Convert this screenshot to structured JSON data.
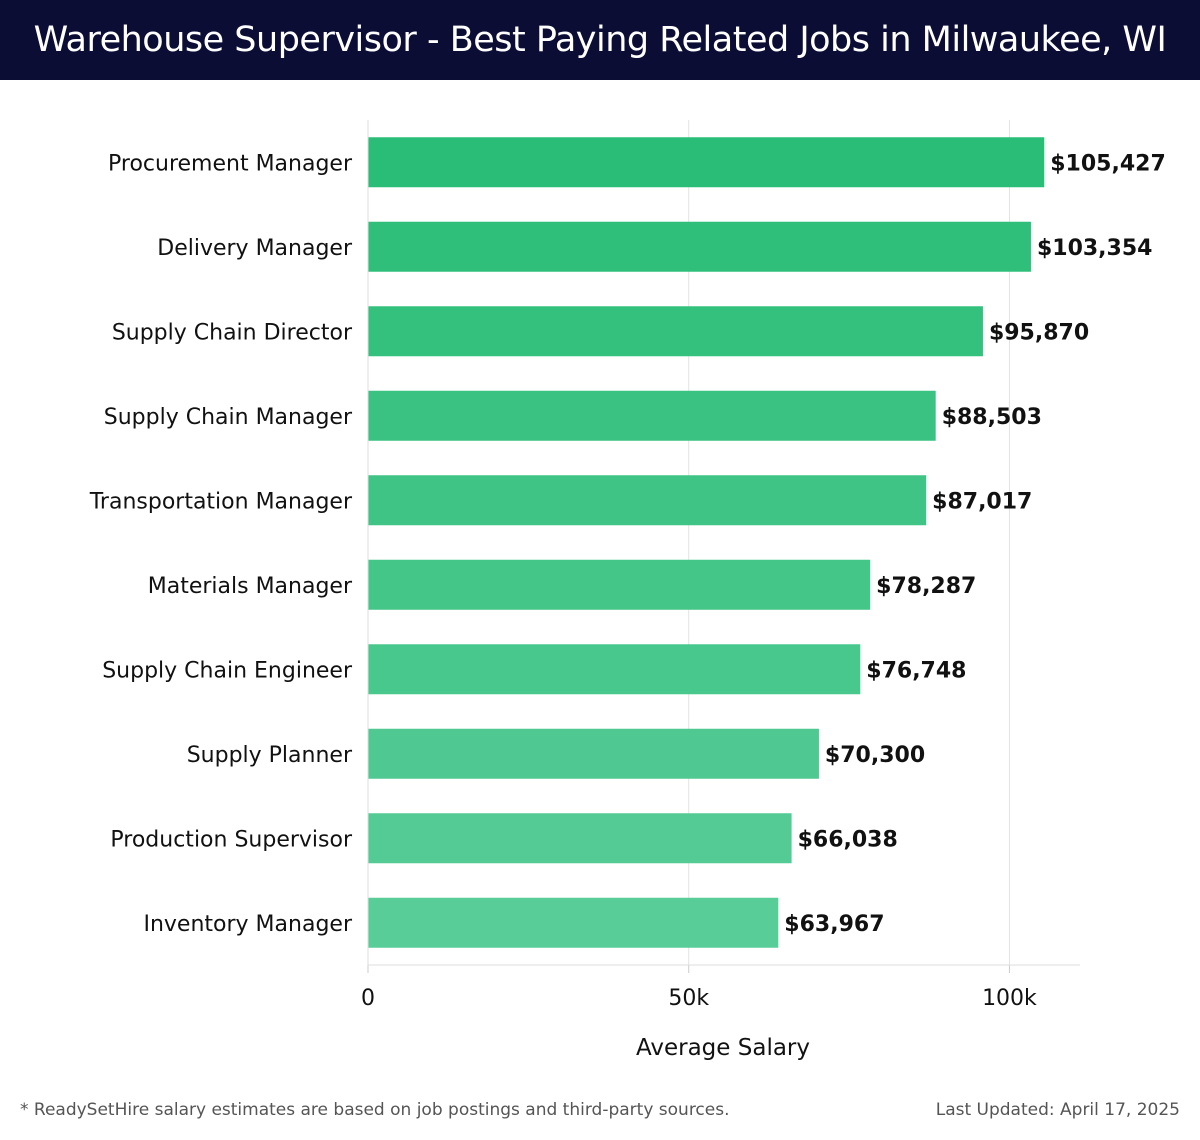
{
  "header": {
    "title": "Warehouse Supervisor - Best Paying Related Jobs in Milwaukee, WI"
  },
  "chart_data": {
    "type": "bar",
    "orientation": "horizontal",
    "categories": [
      "Procurement Manager",
      "Delivery Manager",
      "Supply Chain Director",
      "Supply Chain Manager",
      "Transportation Manager",
      "Materials Manager",
      "Supply Chain Engineer",
      "Supply Planner",
      "Production Supervisor",
      "Inventory Manager"
    ],
    "values": [
      105427,
      103354,
      95870,
      88503,
      87017,
      78287,
      76748,
      70300,
      66038,
      63967
    ],
    "value_labels": [
      "$105,427",
      "$103,354",
      "$95,870",
      "$88,503",
      "$87,017",
      "$78,287",
      "$76,748",
      "$70,300",
      "$66,038",
      "$63,967"
    ],
    "xlabel": "Average Salary",
    "ylabel": "",
    "xlim": [
      0,
      111000
    ],
    "xticks": [
      0,
      50000,
      100000
    ],
    "xtick_labels": [
      "0",
      "50k",
      "100k"
    ],
    "grid": "vertical",
    "colors": {
      "bar_top": "#2abd77",
      "bar_bottom": "#59cd98"
    }
  },
  "footer": {
    "note": "* ReadySetHire salary estimates are based on job postings and third-party sources.",
    "updated": "Last Updated: April 17, 2025"
  }
}
